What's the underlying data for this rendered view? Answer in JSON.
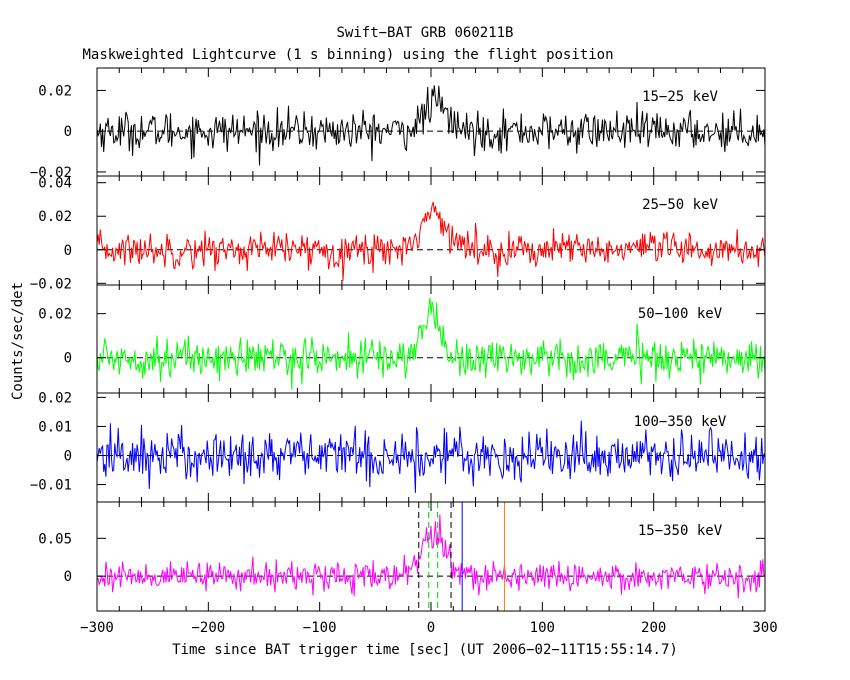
{
  "figure": {
    "title": "Swift−BAT GRB 060211B",
    "subtitle": "Maskweighted Lightcurve (1 s binning) using the flight position",
    "xlabel": "Time since BAT trigger time [sec] (UT 2006−02−11T15:55:14.7)",
    "ylabel": "Counts/sec/det"
  },
  "chart_data": [
    {
      "type": "line",
      "series": [
        {
          "name": "15−25 keV",
          "color": "#000000",
          "noise_sd": 0.0048,
          "pulse": {
            "t0": 4,
            "amp": 0.014,
            "width": 10
          }
        }
      ],
      "xlim": [
        -300,
        300
      ],
      "ylim": [
        -0.022,
        0.031
      ],
      "ticks": [
        {
          "v": 0.02,
          "label": "0.02"
        },
        {
          "v": 0,
          "label": "0"
        },
        {
          "v": -0.02,
          "label": "−0.02"
        }
      ],
      "markers": []
    },
    {
      "type": "line",
      "series": [
        {
          "name": "25−50 keV",
          "color": "#ff0000",
          "noise_sd": 0.0052,
          "pulse": {
            "t0": 3,
            "amp": 0.022,
            "width": 12
          }
        }
      ],
      "xlim": [
        -300,
        300
      ],
      "ylim": [
        -0.021,
        0.044
      ],
      "ticks": [
        {
          "v": 0.04,
          "label": "0.04"
        },
        {
          "v": 0.02,
          "label": "0.02"
        },
        {
          "v": 0,
          "label": "0"
        },
        {
          "v": -0.02,
          "label": "−0.02"
        }
      ],
      "markers": []
    },
    {
      "type": "line",
      "series": [
        {
          "name": "50−100 keV",
          "color": "#00ff00",
          "noise_sd": 0.0045,
          "pulse": {
            "t0": 0,
            "amp": 0.021,
            "width": 8
          }
        }
      ],
      "xlim": [
        -300,
        300
      ],
      "ylim": [
        -0.016,
        0.033
      ],
      "ticks": [
        {
          "v": 0.02,
          "label": "0.02"
        },
        {
          "v": 0,
          "label": "0"
        }
      ],
      "markers": []
    },
    {
      "type": "line",
      "series": [
        {
          "name": "100−350 keV",
          "color": "#0000ff",
          "noise_sd": 0.0045,
          "pulse": {
            "t0": 0,
            "amp": 0,
            "width": 1
          }
        }
      ],
      "xlim": [
        -300,
        300
      ],
      "ylim": [
        -0.016,
        0.0215
      ],
      "ticks": [
        {
          "v": 0.02,
          "label": "0.02"
        },
        {
          "v": 0.01,
          "label": "0.01"
        },
        {
          "v": 0,
          "label": "0"
        },
        {
          "v": -0.01,
          "label": "−0.01"
        }
      ],
      "markers": []
    },
    {
      "type": "line",
      "series": [
        {
          "name": "15−350 keV",
          "color": "#ff00ff",
          "noise_sd": 0.0095,
          "pulse": {
            "t0": 3,
            "amp": 0.055,
            "width": 11
          }
        }
      ],
      "xlim": [
        -300,
        300
      ],
      "ylim": [
        -0.046,
        0.098
      ],
      "ticks": [
        {
          "v": 0.05,
          "label": "0.05"
        },
        {
          "v": 0,
          "label": "0"
        }
      ],
      "markers": [
        {
          "x": -11,
          "color": "#000000",
          "style": "dashed"
        },
        {
          "x": 18,
          "color": "#000000",
          "style": "dashed"
        },
        {
          "x": -2,
          "color": "#00cc00",
          "style": "dashed"
        },
        {
          "x": 6,
          "color": "#00cc00",
          "style": "dashed"
        },
        {
          "x": 28,
          "color": "#0000ff",
          "style": "solid"
        },
        {
          "x": 66,
          "color": "#ff8000",
          "style": "solid"
        }
      ]
    }
  ],
  "xaxis": {
    "ticks": [
      {
        "v": -300,
        "label": "−300"
      },
      {
        "v": -200,
        "label": "−200"
      },
      {
        "v": -100,
        "label": "−100"
      },
      {
        "v": 0,
        "label": "0"
      },
      {
        "v": 100,
        "label": "100"
      },
      {
        "v": 200,
        "label": "200"
      },
      {
        "v": 300,
        "label": "300"
      }
    ]
  }
}
